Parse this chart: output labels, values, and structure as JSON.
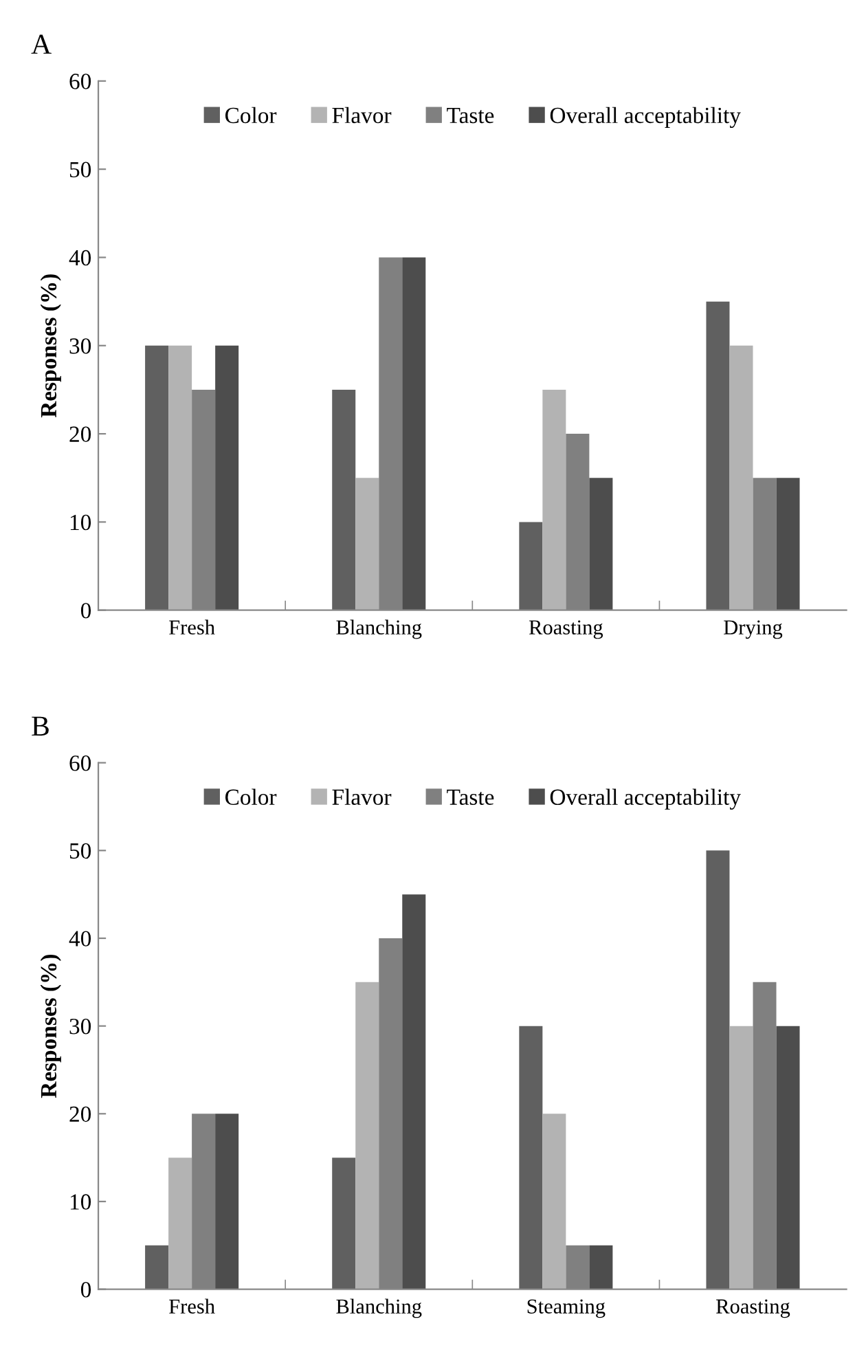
{
  "chart_data": [
    {
      "type": "bar",
      "title": "A",
      "ylabel": "Responses (%)",
      "categories": [
        "Fresh",
        "Blanching",
        "Roasting",
        "Drying"
      ],
      "series": [
        {
          "name": "Color",
          "color": "#606060",
          "values": [
            30,
            25,
            10,
            35
          ]
        },
        {
          "name": "Flavor",
          "color": "#b3b3b3",
          "values": [
            30,
            15,
            25,
            30
          ]
        },
        {
          "name": "Taste",
          "color": "#808080",
          "values": [
            25,
            40,
            20,
            15
          ]
        },
        {
          "name": "Overall acceptability",
          "color": "#4d4d4d",
          "values": [
            30,
            40,
            15,
            15
          ]
        }
      ],
      "ylim": [
        0,
        60
      ],
      "yticks": [
        0,
        10,
        20,
        30,
        40,
        50,
        60
      ],
      "legend": "top",
      "grid": false
    },
    {
      "type": "bar",
      "title": "B",
      "ylabel": "Responses (%)",
      "categories": [
        "Fresh",
        "Blanching",
        "Steaming",
        "Roasting"
      ],
      "series": [
        {
          "name": "Color",
          "color": "#606060",
          "values": [
            5,
            15,
            30,
            50
          ]
        },
        {
          "name": "Flavor",
          "color": "#b3b3b3",
          "values": [
            15,
            35,
            20,
            30
          ]
        },
        {
          "name": "Taste",
          "color": "#808080",
          "values": [
            20,
            40,
            5,
            35
          ]
        },
        {
          "name": "Overall acceptability",
          "color": "#4d4d4d",
          "values": [
            20,
            45,
            5,
            30
          ]
        }
      ],
      "ylim": [
        0,
        60
      ],
      "yticks": [
        0,
        10,
        20,
        30,
        40,
        50,
        60
      ],
      "legend": "top",
      "grid": false
    }
  ]
}
